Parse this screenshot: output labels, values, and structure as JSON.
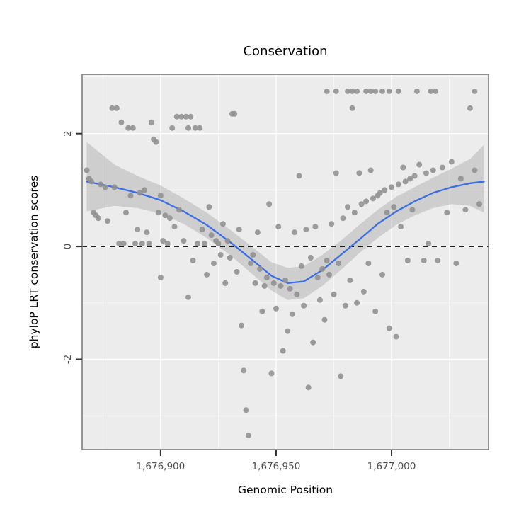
{
  "title": "Conservation",
  "chart_data": {
    "type": "scatter",
    "title": "Conservation",
    "xlabel": "Genomic Position",
    "ylabel": "phyloP LRT conservation scores",
    "xlim": [
      1676866,
      1677042
    ],
    "ylim": [
      -3.6,
      3.05
    ],
    "grid": true,
    "legend": "none",
    "x_major_ticks": [
      1676900,
      1676950,
      1677000
    ],
    "x_tick_labels": [
      "1,676,900",
      "1,676,950",
      "1,677,000"
    ],
    "x_minor_ticks": [
      1676875,
      1676925,
      1676975,
      1677025
    ],
    "y_major_ticks": [
      -2,
      0,
      2
    ],
    "y_tick_labels": [
      "-2",
      "0",
      "2"
    ],
    "y_minor_ticks": [
      -3,
      -1,
      1,
      3
    ],
    "reference_line_y": 0,
    "style": {
      "panel_bg": "#ececec",
      "grid_major": "#ffffff",
      "grid_minor": "#f7f7f7",
      "panel_border": "#7d7d7d",
      "point_color": "#8f8f8f",
      "smooth_line_color": "#3a6fe8",
      "ribbon_color": "#9e9e9e",
      "ribbon_opacity": 0.38,
      "reference_line_color": "#000000",
      "tick_color": "#333333",
      "tick_label_color": "#4d4d4d"
    },
    "points": [
      [
        1676868,
        1.35
      ],
      [
        1676869,
        1.2
      ],
      [
        1676870,
        1.15
      ],
      [
        1676871,
        0.6
      ],
      [
        1676872,
        0.55
      ],
      [
        1676873,
        0.5
      ],
      [
        1676874,
        1.1
      ],
      [
        1676876,
        1.05
      ],
      [
        1676877,
        0.45
      ],
      [
        1676879,
        2.45
      ],
      [
        1676880,
        1.05
      ],
      [
        1676881,
        2.45
      ],
      [
        1676882,
        0.05
      ],
      [
        1676883,
        2.2
      ],
      [
        1676884,
        0.05
      ],
      [
        1676886,
        2.1
      ],
      [
        1676888,
        2.1
      ],
      [
        1676885,
        0.6
      ],
      [
        1676887,
        0.9
      ],
      [
        1676889,
        0.05
      ],
      [
        1676890,
        0.3
      ],
      [
        1676891,
        0.95
      ],
      [
        1676892,
        0.05
      ],
      [
        1676893,
        1.0
      ],
      [
        1676894,
        0.25
      ],
      [
        1676895,
        0.05
      ],
      [
        1676896,
        2.2
      ],
      [
        1676897,
        1.9
      ],
      [
        1676898,
        1.85
      ],
      [
        1676899,
        0.6
      ],
      [
        1676900,
        0.9
      ],
      [
        1676900,
        -0.55
      ],
      [
        1676901,
        0.1
      ],
      [
        1676902,
        0.55
      ],
      [
        1676903,
        0.05
      ],
      [
        1676904,
        0.5
      ],
      [
        1676905,
        2.1
      ],
      [
        1676906,
        0.35
      ],
      [
        1676907,
        2.3
      ],
      [
        1676908,
        0.65
      ],
      [
        1676909,
        2.3
      ],
      [
        1676910,
        0.1
      ],
      [
        1676911,
        2.3
      ],
      [
        1676912,
        2.1
      ],
      [
        1676912,
        -0.9
      ],
      [
        1676913,
        2.3
      ],
      [
        1676914,
        -0.25
      ],
      [
        1676915,
        2.1
      ],
      [
        1676916,
        0.05
      ],
      [
        1676917,
        2.1
      ],
      [
        1676918,
        0.3
      ],
      [
        1676919,
        0.05
      ],
      [
        1676920,
        -0.5
      ],
      [
        1676921,
        0.7
      ],
      [
        1676922,
        0.2
      ],
      [
        1676923,
        -0.3
      ],
      [
        1676924,
        0.1
      ],
      [
        1676925,
        0.05
      ],
      [
        1676926,
        -0.15
      ],
      [
        1676927,
        0.4
      ],
      [
        1676928,
        -0.65
      ],
      [
        1676929,
        0.1
      ],
      [
        1676930,
        -0.2
      ],
      [
        1676931,
        2.35
      ],
      [
        1676932,
        2.35
      ],
      [
        1676933,
        -0.45
      ],
      [
        1676934,
        0.3
      ],
      [
        1676935,
        -1.4
      ],
      [
        1676936,
        -2.2
      ],
      [
        1676937,
        -2.9
      ],
      [
        1676938,
        -3.35
      ],
      [
        1676939,
        -0.3
      ],
      [
        1676940,
        -0.15
      ],
      [
        1676941,
        -0.65
      ],
      [
        1676942,
        0.25
      ],
      [
        1676943,
        -0.4
      ],
      [
        1676944,
        -1.15
      ],
      [
        1676945,
        -0.7
      ],
      [
        1676946,
        -0.55
      ],
      [
        1676947,
        0.75
      ],
      [
        1676948,
        -2.25
      ],
      [
        1676949,
        -0.65
      ],
      [
        1676950,
        -1.1
      ],
      [
        1676951,
        0.35
      ],
      [
        1676952,
        -0.7
      ],
      [
        1676953,
        -1.85
      ],
      [
        1676954,
        -0.6
      ],
      [
        1676955,
        -1.5
      ],
      [
        1676956,
        -0.75
      ],
      [
        1676957,
        -1.2
      ],
      [
        1676958,
        0.25
      ],
      [
        1676959,
        -0.85
      ],
      [
        1676960,
        1.25
      ],
      [
        1676961,
        -0.35
      ],
      [
        1676962,
        -1.05
      ],
      [
        1676963,
        0.3
      ],
      [
        1676964,
        -2.5
      ],
      [
        1676965,
        -0.2
      ],
      [
        1676966,
        -1.7
      ],
      [
        1676967,
        0.35
      ],
      [
        1676968,
        -0.55
      ],
      [
        1676969,
        -0.95
      ],
      [
        1676970,
        -0.4
      ],
      [
        1676971,
        -1.3
      ],
      [
        1676972,
        -0.25
      ],
      [
        1676972,
        2.75
      ],
      [
        1676973,
        -0.5
      ],
      [
        1676974,
        0.4
      ],
      [
        1676975,
        -0.85
      ],
      [
        1676976,
        2.75
      ],
      [
        1676976,
        1.3
      ],
      [
        1676977,
        -0.3
      ],
      [
        1676978,
        -2.3
      ],
      [
        1676979,
        0.5
      ],
      [
        1676980,
        -1.05
      ],
      [
        1676981,
        2.75
      ],
      [
        1676981,
        0.7
      ],
      [
        1676982,
        -0.6
      ],
      [
        1676983,
        2.45
      ],
      [
        1676983,
        2.75
      ],
      [
        1676984,
        0.6
      ],
      [
        1676985,
        -1.0
      ],
      [
        1676985,
        2.75
      ],
      [
        1676986,
        1.3
      ],
      [
        1676987,
        0.75
      ],
      [
        1676988,
        -0.8
      ],
      [
        1676989,
        2.75
      ],
      [
        1676989,
        0.8
      ],
      [
        1676990,
        -0.3
      ],
      [
        1676991,
        2.75
      ],
      [
        1676991,
        1.35
      ],
      [
        1676992,
        0.85
      ],
      [
        1676993,
        2.75
      ],
      [
        1676993,
        -1.15
      ],
      [
        1676994,
        0.9
      ],
      [
        1676995,
        0.95
      ],
      [
        1676996,
        2.75
      ],
      [
        1676996,
        -0.5
      ],
      [
        1676997,
        1.0
      ],
      [
        1676998,
        0.6
      ],
      [
        1676999,
        2.75
      ],
      [
        1676999,
        -1.45
      ],
      [
        1677000,
        1.05
      ],
      [
        1677001,
        0.7
      ],
      [
        1677002,
        -1.6
      ],
      [
        1677003,
        2.75
      ],
      [
        1677003,
        1.1
      ],
      [
        1677004,
        0.35
      ],
      [
        1677005,
        1.4
      ],
      [
        1677006,
        1.15
      ],
      [
        1677007,
        -0.25
      ],
      [
        1677008,
        1.2
      ],
      [
        1677009,
        0.65
      ],
      [
        1677010,
        1.25
      ],
      [
        1677011,
        2.75
      ],
      [
        1677012,
        1.45
      ],
      [
        1677014,
        -0.25
      ],
      [
        1677015,
        1.3
      ],
      [
        1677016,
        0.05
      ],
      [
        1677017,
        2.75
      ],
      [
        1677018,
        1.35
      ],
      [
        1677019,
        2.75
      ],
      [
        1677020,
        -0.25
      ],
      [
        1677022,
        1.4
      ],
      [
        1677024,
        0.6
      ],
      [
        1677026,
        1.5
      ],
      [
        1677028,
        -0.3
      ],
      [
        1677030,
        1.2
      ],
      [
        1677032,
        0.65
      ],
      [
        1677034,
        2.45
      ],
      [
        1677036,
        2.75
      ],
      [
        1677036,
        1.35
      ],
      [
        1677038,
        0.75
      ]
    ],
    "smooth": {
      "x": [
        1676868,
        1676880,
        1676890,
        1676900,
        1676910,
        1676920,
        1676930,
        1676940,
        1676948,
        1676955,
        1676962,
        1676970,
        1676978,
        1676986,
        1676994,
        1677002,
        1677010,
        1677018,
        1677026,
        1677034,
        1677040
      ],
      "y": [
        1.15,
        1.05,
        0.95,
        0.82,
        0.62,
        0.38,
        0.08,
        -0.25,
        -0.52,
        -0.65,
        -0.62,
        -0.42,
        -0.15,
        0.12,
        0.4,
        0.62,
        0.8,
        0.95,
        1.05,
        1.12,
        1.15
      ],
      "ymin": [
        0.62,
        0.72,
        0.68,
        0.58,
        0.4,
        0.15,
        -0.15,
        -0.5,
        -0.78,
        -0.95,
        -0.92,
        -0.7,
        -0.42,
        -0.12,
        0.15,
        0.38,
        0.55,
        0.68,
        0.75,
        0.72,
        0.6
      ],
      "ymax": [
        1.85,
        1.45,
        1.25,
        1.08,
        0.85,
        0.6,
        0.3,
        -0.02,
        -0.28,
        -0.38,
        -0.35,
        -0.15,
        0.1,
        0.38,
        0.65,
        0.88,
        1.05,
        1.22,
        1.38,
        1.55,
        1.8
      ]
    }
  }
}
